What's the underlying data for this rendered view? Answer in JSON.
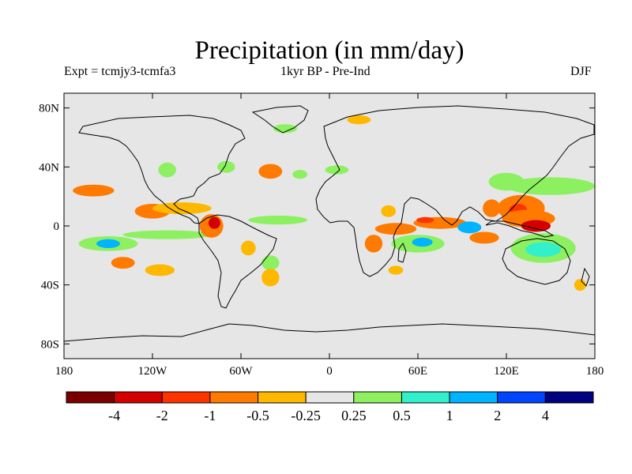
{
  "title": "Precipitation (in mm/day)",
  "subtitle_left": "Expt = tcmjy3-tcmfa3",
  "subtitle_center": "1kyr BP - Pre-Ind",
  "subtitle_right": "DJF",
  "map": {
    "projection": "cylindrical equidistant",
    "lon_range": [
      -180,
      180
    ],
    "lat_range": [
      -90,
      90
    ],
    "background_color": "#e6e6e6",
    "y_ticks": [
      {
        "lat": 80,
        "label": "80N"
      },
      {
        "lat": 40,
        "label": "40N"
      },
      {
        "lat": 0,
        "label": "0"
      },
      {
        "lat": -40,
        "label": "40S"
      },
      {
        "lat": -80,
        "label": "80S"
      }
    ],
    "x_ticks": [
      {
        "lon": -180,
        "label": "180"
      },
      {
        "lon": -120,
        "label": "120W"
      },
      {
        "lon": -60,
        "label": "60W"
      },
      {
        "lon": 0,
        "label": "0"
      },
      {
        "lon": 60,
        "label": "60E"
      },
      {
        "lon": 120,
        "label": "120E"
      },
      {
        "lon": 180,
        "label": "180"
      }
    ]
  },
  "colorbar": {
    "colors": [
      "#7a0000",
      "#d40000",
      "#ff3300",
      "#ff7a00",
      "#ffb800",
      "#e6e6e6",
      "#8cf060",
      "#33f0cc",
      "#00b4ff",
      "#0044ff",
      "#000080"
    ],
    "labels": [
      "-4",
      "-2",
      "-1",
      "-0.5",
      "-0.25",
      "0.25",
      "0.5",
      "1",
      "2",
      "4"
    ]
  },
  "anomaly_regions": [
    {
      "lon": 45,
      "lat": -2,
      "rx": 14,
      "ry": 4,
      "color": "#ff7a00"
    },
    {
      "lon": 75,
      "lat": 2,
      "rx": 18,
      "ry": 4,
      "color": "#ff7a00"
    },
    {
      "lon": 65,
      "lat": 4,
      "rx": 6,
      "ry": 2,
      "color": "#ff3300"
    },
    {
      "lon": 130,
      "lat": 12,
      "rx": 16,
      "ry": 9,
      "color": "#ff7a00"
    },
    {
      "lon": 128,
      "lat": 11,
      "rx": 6,
      "ry": 4,
      "color": "#ff3300"
    },
    {
      "lon": 135,
      "lat": 5,
      "rx": 18,
      "ry": 6,
      "color": "#ff7a00"
    },
    {
      "lon": 140,
      "lat": 0,
      "rx": 10,
      "ry": 4,
      "color": "#d40000"
    },
    {
      "lon": 110,
      "lat": 12,
      "rx": 6,
      "ry": 6,
      "color": "#ff7a00"
    },
    {
      "lon": 105,
      "lat": -8,
      "rx": 10,
      "ry": 4,
      "color": "#ff7a00"
    },
    {
      "lon": 150,
      "lat": 27,
      "rx": 30,
      "ry": 6,
      "color": "#8cf060"
    },
    {
      "lon": 120,
      "lat": 30,
      "rx": 12,
      "ry": 6,
      "color": "#8cf060"
    },
    {
      "lon": 145,
      "lat": -15,
      "rx": 22,
      "ry": 10,
      "color": "#8cf060"
    },
    {
      "lon": 145,
      "lat": -16,
      "rx": 12,
      "ry": 5,
      "color": "#33f0cc"
    },
    {
      "lon": 60,
      "lat": -12,
      "rx": 18,
      "ry": 6,
      "color": "#8cf060"
    },
    {
      "lon": 63,
      "lat": -11,
      "rx": 7,
      "ry": 3,
      "color": "#00b4ff"
    },
    {
      "lon": 95,
      "lat": -1,
      "rx": 8,
      "ry": 4,
      "color": "#00b4ff"
    },
    {
      "lon": 30,
      "lat": -12,
      "rx": 6,
      "ry": 6,
      "color": "#ff7a00"
    },
    {
      "lon": 45,
      "lat": -30,
      "rx": 5,
      "ry": 3,
      "color": "#ffb800"
    },
    {
      "lon": -150,
      "lat": -12,
      "rx": 20,
      "ry": 5,
      "color": "#8cf060"
    },
    {
      "lon": -150,
      "lat": -12,
      "rx": 8,
      "ry": 3,
      "color": "#00b4ff"
    },
    {
      "lon": -110,
      "lat": -6,
      "rx": 30,
      "ry": 3,
      "color": "#8cf060"
    },
    {
      "lon": -160,
      "lat": 24,
      "rx": 14,
      "ry": 4,
      "color": "#ff7a00"
    },
    {
      "lon": -120,
      "lat": 10,
      "rx": 12,
      "ry": 5,
      "color": "#ff7a00"
    },
    {
      "lon": -100,
      "lat": 12,
      "rx": 20,
      "ry": 4,
      "color": "#ffb800"
    },
    {
      "lon": -80,
      "lat": 0,
      "rx": 8,
      "ry": 8,
      "color": "#ff7a00"
    },
    {
      "lon": -78,
      "lat": 2,
      "rx": 4,
      "ry": 4,
      "color": "#d40000"
    },
    {
      "lon": -140,
      "lat": -25,
      "rx": 8,
      "ry": 4,
      "color": "#ff7a00"
    },
    {
      "lon": -115,
      "lat": -30,
      "rx": 10,
      "ry": 4,
      "color": "#ffb800"
    },
    {
      "lon": -40,
      "lat": -25,
      "rx": 6,
      "ry": 5,
      "color": "#8cf060"
    },
    {
      "lon": -40,
      "lat": -35,
      "rx": 6,
      "ry": 6,
      "color": "#ffb800"
    },
    {
      "lon": -35,
      "lat": 4,
      "rx": 20,
      "ry": 3,
      "color": "#8cf060"
    },
    {
      "lon": -40,
      "lat": 37,
      "rx": 8,
      "ry": 5,
      "color": "#ff7a00"
    },
    {
      "lon": -20,
      "lat": 35,
      "rx": 5,
      "ry": 3,
      "color": "#8cf060"
    },
    {
      "lon": -70,
      "lat": 40,
      "rx": 6,
      "ry": 4,
      "color": "#8cf060"
    },
    {
      "lon": -110,
      "lat": 38,
      "rx": 6,
      "ry": 5,
      "color": "#8cf060"
    },
    {
      "lon": -30,
      "lat": 66,
      "rx": 8,
      "ry": 3,
      "color": "#8cf060"
    },
    {
      "lon": 20,
      "lat": 72,
      "rx": 8,
      "ry": 3,
      "color": "#ffb800"
    },
    {
      "lon": 5,
      "lat": 38,
      "rx": 8,
      "ry": 3,
      "color": "#8cf060"
    },
    {
      "lon": 40,
      "lat": 10,
      "rx": 5,
      "ry": 4,
      "color": "#ffb800"
    },
    {
      "lon": -55,
      "lat": -15,
      "rx": 5,
      "ry": 5,
      "color": "#ffb800"
    },
    {
      "lon": 170,
      "lat": -40,
      "rx": 4,
      "ry": 4,
      "color": "#ffb800"
    }
  ]
}
